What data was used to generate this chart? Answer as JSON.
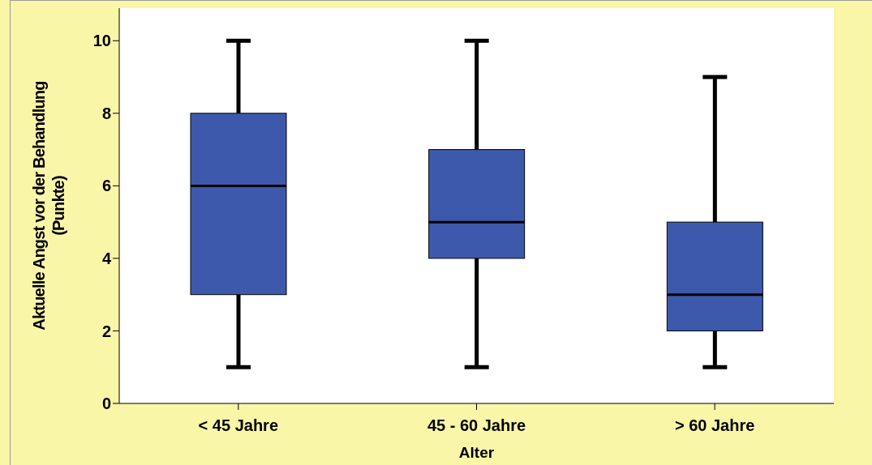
{
  "chart_data": {
    "type": "box",
    "xlabel": "Alter",
    "ylabel": "Aktuelle Angst vor der Behandlung (Punkte)",
    "categories": [
      "< 45 Jahre",
      "45 - 60 Jahre",
      "> 60 Jahre"
    ],
    "color": "#3d59ab",
    "boxes": [
      {
        "low": 1,
        "q1": 3,
        "median": 6,
        "q3": 8,
        "high": 10
      },
      {
        "low": 1,
        "q1": 4,
        "median": 5,
        "q3": 7,
        "high": 10
      },
      {
        "low": 1,
        "q1": 2,
        "median": 3,
        "q3": 5,
        "high": 9
      }
    ],
    "ylim": [
      0,
      10.9
    ],
    "yticks": [
      0,
      2,
      4,
      6,
      8,
      10
    ]
  }
}
